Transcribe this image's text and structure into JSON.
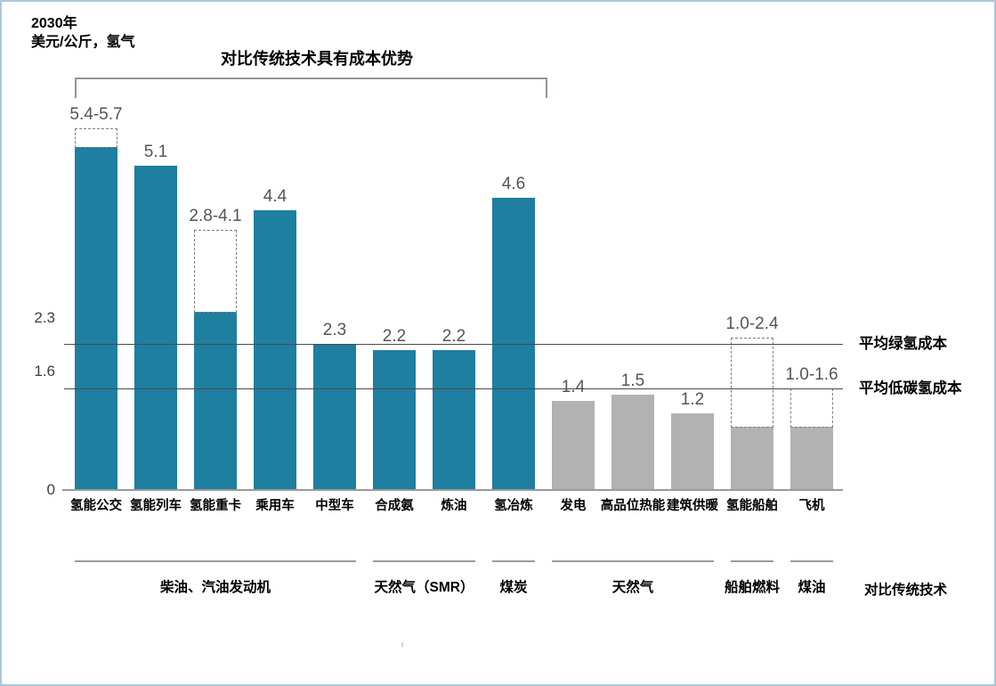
{
  "header": {
    "title": "2030年",
    "unit": "美元/公斤，氢气"
  },
  "annotations": {
    "bracket_label": "对比传统技术具有成本优势"
  },
  "footer": {
    "comparator_caption": "对比传统技术"
  },
  "colors": {
    "teal": "#1e7fa0",
    "gray": "#b2b2b2",
    "ref_line": "#4a4a4a",
    "baseline": "#9b9b9b",
    "group_line": "#9a9a9a",
    "value_label": "#555555",
    "border": "#a9c7df"
  },
  "chart_data": {
    "type": "bar",
    "title": "2030年",
    "ylabel": "美元/公斤，氢气",
    "ylim": [
      0,
      6.2
    ],
    "grid": false,
    "categories": [
      "氢能公交",
      "氢能列车",
      "氢能重卡",
      "乘用车",
      "中型车",
      "合成氨",
      "炼油",
      "氢冶炼",
      "发电",
      "高品位热能",
      "建筑供暖",
      "氢能船舶",
      "飞机"
    ],
    "bars": [
      {
        "category": "氢能公交",
        "value": 5.4,
        "range_max": 5.7,
        "label": "5.4-5.7",
        "palette": "teal"
      },
      {
        "category": "氢能列车",
        "value": 5.1,
        "range_max": null,
        "label": "5.1",
        "palette": "teal"
      },
      {
        "category": "氢能重卡",
        "value": 2.8,
        "range_max": 4.1,
        "label": "2.8-4.1",
        "palette": "teal"
      },
      {
        "category": "乘用车",
        "value": 4.4,
        "range_max": null,
        "label": "4.4",
        "palette": "teal"
      },
      {
        "category": "中型车",
        "value": 2.3,
        "range_max": null,
        "label": "2.3",
        "palette": "teal"
      },
      {
        "category": "合成氨",
        "value": 2.2,
        "range_max": null,
        "label": "2.2",
        "palette": "teal"
      },
      {
        "category": "炼油",
        "value": 2.2,
        "range_max": null,
        "label": "2.2",
        "palette": "teal"
      },
      {
        "category": "氢冶炼",
        "value": 4.6,
        "range_max": null,
        "label": "4.6",
        "palette": "teal"
      },
      {
        "category": "发电",
        "value": 1.4,
        "range_max": null,
        "label": "1.4",
        "palette": "gray"
      },
      {
        "category": "高品位热能",
        "value": 1.5,
        "range_max": null,
        "label": "1.5",
        "palette": "gray"
      },
      {
        "category": "建筑供暖",
        "value": 1.2,
        "range_max": null,
        "label": "1.2",
        "palette": "gray"
      },
      {
        "category": "氢能船舶",
        "value": 1.0,
        "range_max": 2.4,
        "label": "1.0-2.4",
        "palette": "gray"
      },
      {
        "category": "飞机",
        "value": 1.0,
        "range_max": 1.6,
        "label": "1.0-1.6",
        "palette": "gray"
      }
    ],
    "reference_lines": [
      {
        "value": 2.3,
        "label": "平均绿氢成本"
      },
      {
        "value": 1.6,
        "label": "平均低碳氢成本"
      }
    ],
    "y_ticks": [
      {
        "label": "2.3",
        "value": 2.3
      },
      {
        "label": "1.6",
        "value": 1.6
      },
      {
        "label": "0",
        "value": 0
      }
    ],
    "top_bracket": {
      "label": "对比传统技术具有成本优势",
      "from_index": 0,
      "to_index": 7
    },
    "comparator_groups": [
      {
        "label": "柴油、汽油发动机",
        "from_index": 0,
        "to_index": 4
      },
      {
        "label": "天然气（SMR）",
        "from_index": 5,
        "to_index": 6
      },
      {
        "label": "煤炭",
        "from_index": 7,
        "to_index": 7
      },
      {
        "label": "天然气",
        "from_index": 8,
        "to_index": 10
      },
      {
        "label": "船舶燃料",
        "from_index": 11,
        "to_index": 11
      },
      {
        "label": "煤油",
        "from_index": 12,
        "to_index": 12
      }
    ],
    "comparator_caption": "对比传统技术",
    "legend": null
  }
}
